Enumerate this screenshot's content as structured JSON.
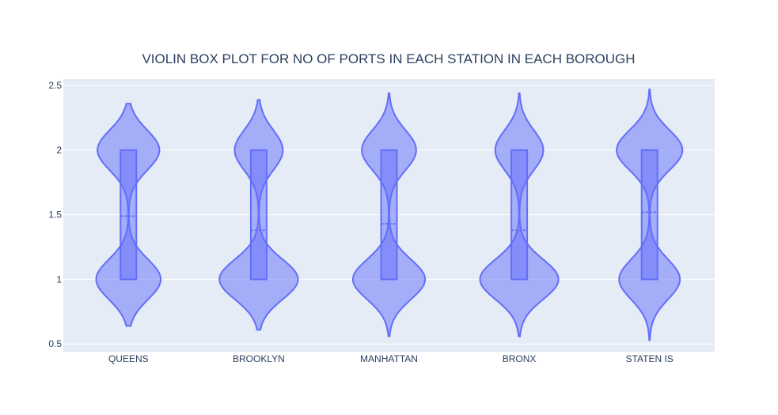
{
  "chart_data": {
    "type": "violin",
    "title": "VIOLIN BOX PLOT FOR NO OF PORTS IN EACH STATION IN EACH BOROUGH",
    "xlabel": "",
    "ylabel": "",
    "ylim": [
      0.44,
      2.55
    ],
    "yticks": [
      0.5,
      1,
      1.5,
      2,
      2.5
    ],
    "ytick_labels": [
      "0.5",
      "1",
      "1.5",
      "2",
      "2.5"
    ],
    "grid": true,
    "legend": "none",
    "colors": {
      "fill": "#636efa",
      "line": "#636efa",
      "plot_bg": "#e5ecf6",
      "text": "#2a3f5f"
    },
    "categories": [
      "QUEENS",
      "BROOKLYN",
      "MANHATTAN",
      "BRONX",
      "STATEN IS"
    ],
    "violins": [
      {
        "name": "QUEENS",
        "min": 0.64,
        "max": 2.36,
        "q1": 1,
        "q3": 2,
        "mean": 1.49,
        "low_weight": 0.51
      },
      {
        "name": "BROOKLYN",
        "min": 0.61,
        "max": 2.39,
        "q1": 1,
        "q3": 2,
        "mean": 1.38,
        "low_weight": 0.62
      },
      {
        "name": "MANHATTAN",
        "min": 0.56,
        "max": 2.44,
        "q1": 1,
        "q3": 2,
        "mean": 1.43,
        "low_weight": 0.57
      },
      {
        "name": "BRONX",
        "min": 0.56,
        "max": 2.44,
        "q1": 1,
        "q3": 2,
        "mean": 1.38,
        "low_weight": 0.62
      },
      {
        "name": "STATEN IS",
        "min": 0.53,
        "max": 2.47,
        "q1": 1,
        "q3": 2,
        "mean": 1.52,
        "low_weight": 0.48
      }
    ]
  }
}
